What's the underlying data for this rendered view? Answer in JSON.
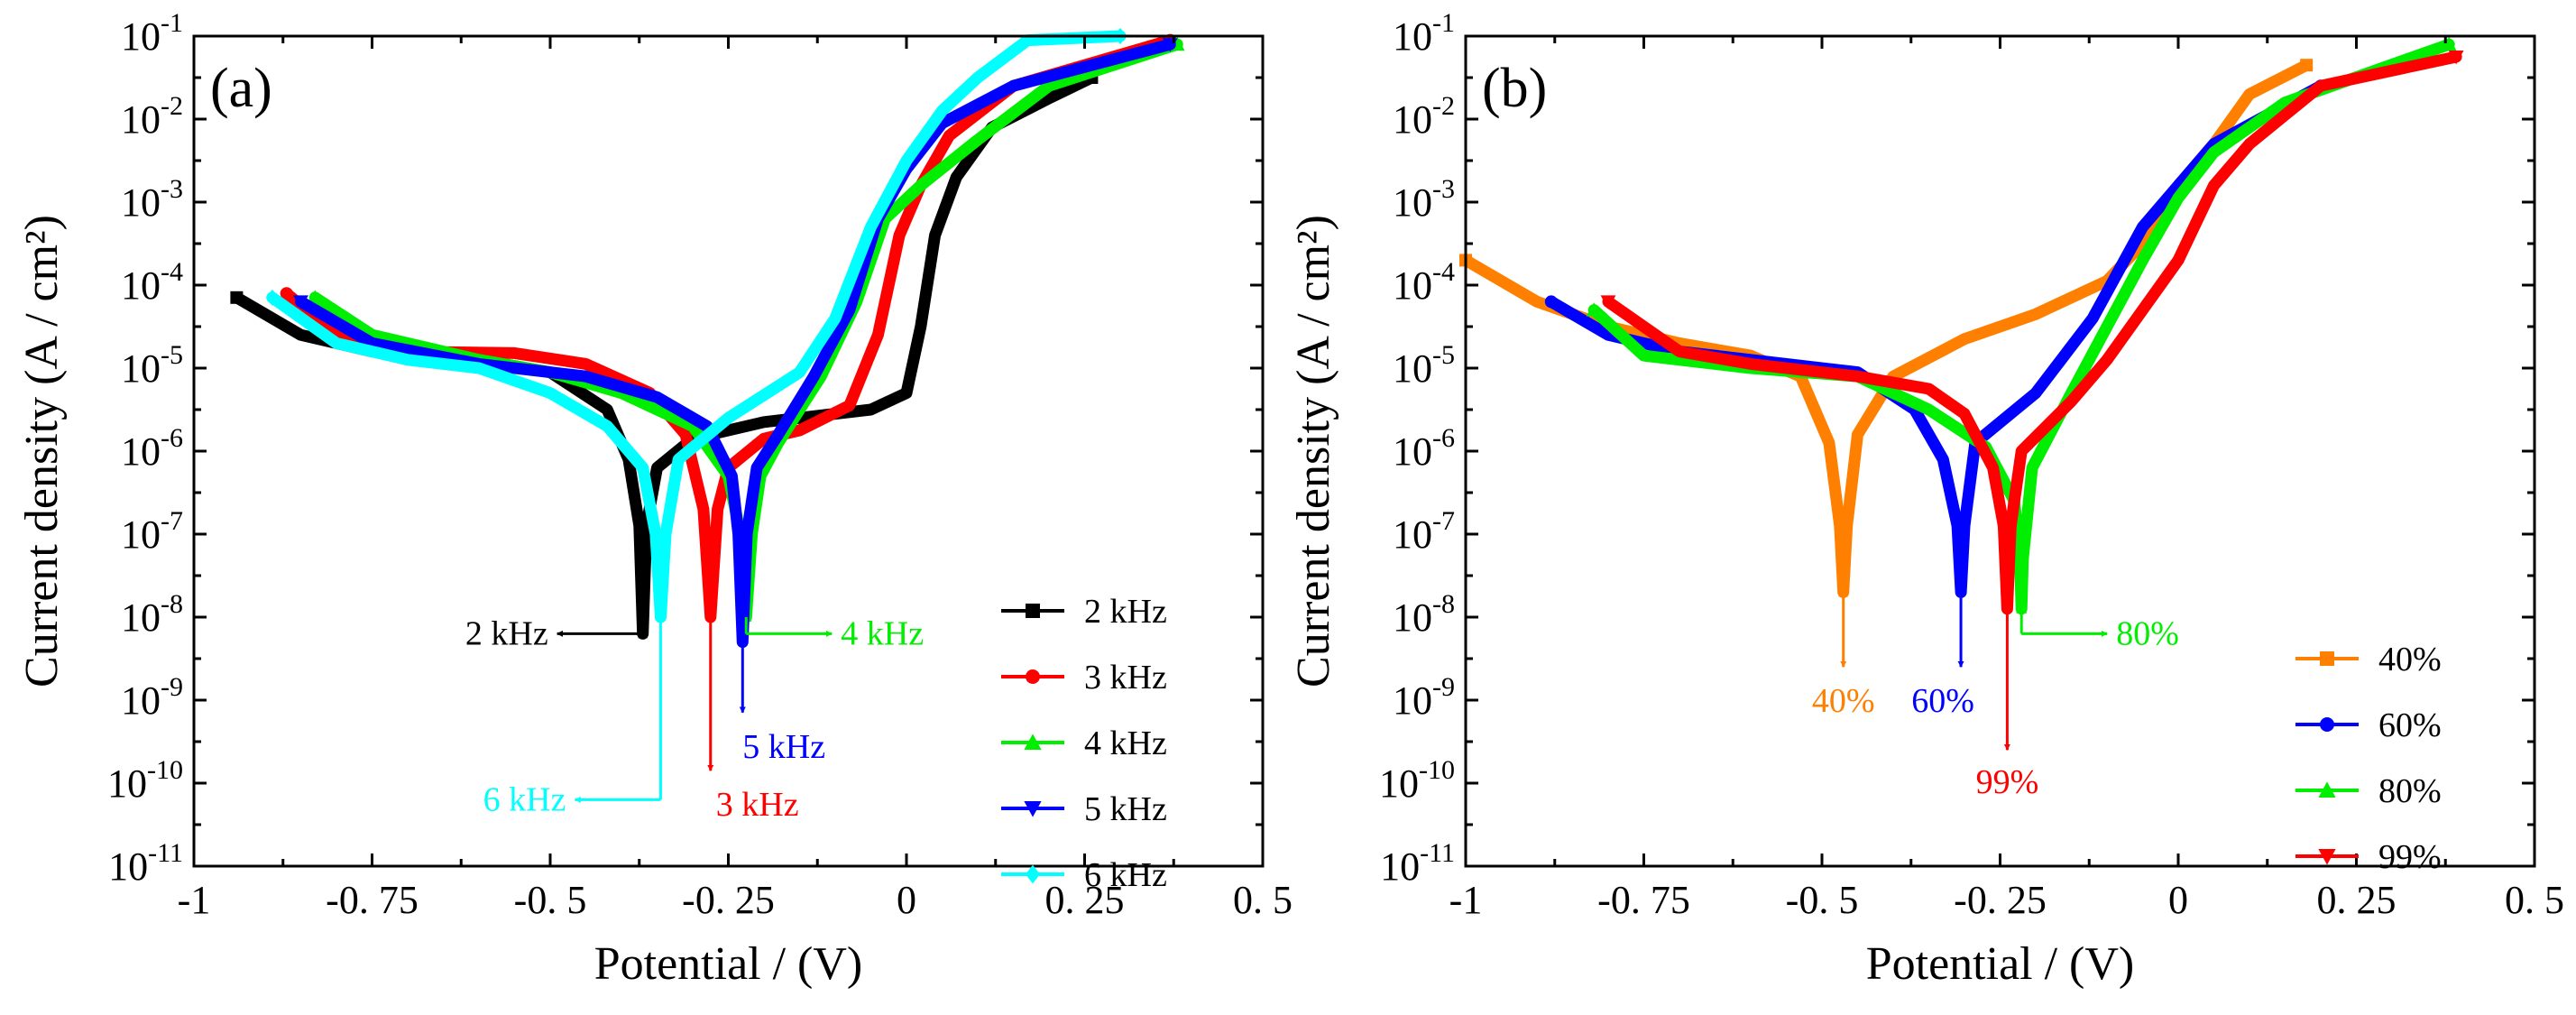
{
  "chart_data": [
    {
      "type": "line",
      "panel_label": "(a)",
      "xlabel": "Potential / (V)",
      "ylabel": "Current density (A / cm²)",
      "xlim": [
        -1,
        0.5
      ],
      "ylim_log10": [
        -11,
        -1
      ],
      "x_ticks": [
        -1,
        -0.75,
        -0.5,
        -0.25,
        0,
        0.25,
        0.5
      ],
      "x_tick_labels": [
        "-1",
        "-0. 75",
        "-0. 5",
        "-0. 25",
        "0",
        "0. 25",
        "0. 5"
      ],
      "y_tick_exponents": [
        -11,
        -10,
        -9,
        -8,
        -7,
        -6,
        -5,
        -4,
        -3,
        -2,
        -1
      ],
      "legend_position": "lower-right",
      "series": [
        {
          "name": "2 kHz",
          "color": "#000000",
          "marker": "square",
          "ecorr": -0.37,
          "xstart": -0.94,
          "xend": 0.26,
          "points": [
            [
              -0.94,
              -4.15
            ],
            [
              -0.85,
              -4.6
            ],
            [
              -0.75,
              -4.8
            ],
            [
              -0.6,
              -4.9
            ],
            [
              -0.5,
              -5.05
            ],
            [
              -0.42,
              -5.5
            ],
            [
              -0.39,
              -6.1
            ],
            [
              -0.375,
              -6.9
            ],
            [
              -0.37,
              -8.2
            ],
            [
              -0.365,
              -6.9
            ],
            [
              -0.35,
              -6.2
            ],
            [
              -0.3,
              -5.85
            ],
            [
              -0.2,
              -5.65
            ],
            [
              -0.05,
              -5.5
            ],
            [
              0.0,
              -5.3
            ],
            [
              0.02,
              -4.5
            ],
            [
              0.04,
              -3.4
            ],
            [
              0.07,
              -2.7
            ],
            [
              0.12,
              -2.1
            ],
            [
              0.2,
              -1.75
            ],
            [
              0.26,
              -1.5
            ]
          ]
        },
        {
          "name": "3 kHz",
          "color": "#ff0000",
          "marker": "circle",
          "ecorr": -0.275,
          "xstart": -0.87,
          "xend": 0.37,
          "points": [
            [
              -0.87,
              -4.1
            ],
            [
              -0.8,
              -4.6
            ],
            [
              -0.7,
              -4.8
            ],
            [
              -0.55,
              -4.82
            ],
            [
              -0.45,
              -4.95
            ],
            [
              -0.36,
              -5.3
            ],
            [
              -0.31,
              -5.8
            ],
            [
              -0.285,
              -6.7
            ],
            [
              -0.275,
              -8.0
            ],
            [
              -0.265,
              -6.7
            ],
            [
              -0.25,
              -6.2
            ],
            [
              -0.2,
              -5.85
            ],
            [
              -0.15,
              -5.75
            ],
            [
              -0.08,
              -5.45
            ],
            [
              -0.04,
              -4.6
            ],
            [
              -0.01,
              -3.4
            ],
            [
              0.02,
              -2.8
            ],
            [
              0.06,
              -2.2
            ],
            [
              0.15,
              -1.6
            ],
            [
              0.37,
              -1.05
            ]
          ]
        },
        {
          "name": "4 kHz",
          "color": "#00ee00",
          "marker": "triangle-up",
          "ecorr": -0.225,
          "xstart": -0.83,
          "xend": 0.38,
          "points": [
            [
              -0.83,
              -4.15
            ],
            [
              -0.75,
              -4.6
            ],
            [
              -0.6,
              -4.9
            ],
            [
              -0.5,
              -5.05
            ],
            [
              -0.4,
              -5.3
            ],
            [
              -0.3,
              -5.7
            ],
            [
              -0.25,
              -6.3
            ],
            [
              -0.233,
              -7.0
            ],
            [
              -0.225,
              -8.0
            ],
            [
              -0.217,
              -7.0
            ],
            [
              -0.205,
              -6.3
            ],
            [
              -0.18,
              -5.9
            ],
            [
              -0.12,
              -5.1
            ],
            [
              -0.07,
              -4.2
            ],
            [
              -0.03,
              -3.2
            ],
            [
              0.02,
              -2.8
            ],
            [
              0.1,
              -2.25
            ],
            [
              0.2,
              -1.6
            ],
            [
              0.38,
              -1.1
            ]
          ]
        },
        {
          "name": "5 kHz",
          "color": "#0000ff",
          "marker": "triangle-down",
          "ecorr": -0.23,
          "xstart": -0.85,
          "xend": 0.37,
          "points": [
            [
              -0.85,
              -4.2
            ],
            [
              -0.75,
              -4.7
            ],
            [
              -0.6,
              -4.95
            ],
            [
              -0.45,
              -5.1
            ],
            [
              -0.35,
              -5.35
            ],
            [
              -0.28,
              -5.7
            ],
            [
              -0.245,
              -6.3
            ],
            [
              -0.236,
              -7.0
            ],
            [
              -0.23,
              -8.3
            ],
            [
              -0.224,
              -7.0
            ],
            [
              -0.21,
              -6.2
            ],
            [
              -0.18,
              -5.8
            ],
            [
              -0.13,
              -5.1
            ],
            [
              -0.08,
              -4.3
            ],
            [
              -0.04,
              -3.2
            ],
            [
              0.0,
              -2.6
            ],
            [
              0.05,
              -2.05
            ],
            [
              0.15,
              -1.6
            ],
            [
              0.37,
              -1.1
            ]
          ]
        },
        {
          "name": "6 kHz",
          "color": "#00ffff",
          "marker": "diamond",
          "ecorr": -0.345,
          "xstart": -0.89,
          "xend": 0.3,
          "points": [
            [
              -0.89,
              -4.15
            ],
            [
              -0.8,
              -4.7
            ],
            [
              -0.7,
              -4.9
            ],
            [
              -0.6,
              -5.0
            ],
            [
              -0.5,
              -5.3
            ],
            [
              -0.42,
              -5.7
            ],
            [
              -0.37,
              -6.2
            ],
            [
              -0.352,
              -7.0
            ],
            [
              -0.345,
              -8.0
            ],
            [
              -0.338,
              -7.0
            ],
            [
              -0.32,
              -6.1
            ],
            [
              -0.25,
              -5.6
            ],
            [
              -0.15,
              -5.05
            ],
            [
              -0.1,
              -4.4
            ],
            [
              -0.05,
              -3.3
            ],
            [
              0.0,
              -2.5
            ],
            [
              0.05,
              -1.9
            ],
            [
              0.1,
              -1.5
            ],
            [
              0.17,
              -1.05
            ],
            [
              0.3,
              -1.0
            ]
          ]
        }
      ],
      "annotations": [
        {
          "text": "2 kHz",
          "color": "#000000",
          "arrow_x": -0.37,
          "arrow_to_log": -8.2,
          "direction": "left"
        },
        {
          "text": "3 kHz",
          "color": "#ff0000",
          "arrow_x": -0.275,
          "arrow_to_log": -9.85,
          "direction": "down"
        },
        {
          "text": "4 kHz",
          "color": "#00ee00",
          "arrow_x": -0.225,
          "arrow_to_log": -8.2,
          "direction": "right"
        },
        {
          "text": "5 kHz",
          "color": "#0000ff",
          "arrow_x": -0.23,
          "arrow_to_log": -9.15,
          "direction": "down"
        },
        {
          "text": "6 kHz",
          "color": "#00ffff",
          "arrow_x": -0.345,
          "arrow_to_log": -10.2,
          "direction": "left"
        }
      ]
    },
    {
      "type": "line",
      "panel_label": "(b)",
      "xlabel": "Potential / (V)",
      "ylabel": "Current density (A / cm²)",
      "xlim": [
        -1,
        0.5
      ],
      "ylim_log10": [
        -11,
        -1
      ],
      "x_ticks": [
        -1,
        -0.75,
        -0.5,
        -0.25,
        0,
        0.25,
        0.5
      ],
      "x_tick_labels": [
        "-1",
        "-0. 75",
        "-0. 5",
        "-0. 25",
        "0",
        "0. 25",
        "0. 5"
      ],
      "y_tick_exponents": [
        -11,
        -10,
        -9,
        -8,
        -7,
        -6,
        -5,
        -4,
        -3,
        -2,
        -1
      ],
      "legend_position": "lower-right",
      "series": [
        {
          "name": "40%",
          "color": "#ff8000",
          "marker": "square",
          "ecorr": -0.47,
          "xstart": -1.0,
          "xend": 0.18,
          "points": [
            [
              -1.0,
              -3.7
            ],
            [
              -0.9,
              -4.2
            ],
            [
              -0.8,
              -4.5
            ],
            [
              -0.7,
              -4.7
            ],
            [
              -0.6,
              -4.85
            ],
            [
              -0.53,
              -5.1
            ],
            [
              -0.49,
              -5.9
            ],
            [
              -0.475,
              -6.9
            ],
            [
              -0.47,
              -7.7
            ],
            [
              -0.465,
              -6.9
            ],
            [
              -0.45,
              -5.8
            ],
            [
              -0.4,
              -5.1
            ],
            [
              -0.3,
              -4.65
            ],
            [
              -0.2,
              -4.35
            ],
            [
              -0.1,
              -3.95
            ],
            [
              -0.05,
              -3.5
            ],
            [
              0.0,
              -2.8
            ],
            [
              0.05,
              -2.3
            ],
            [
              0.1,
              -1.7
            ],
            [
              0.18,
              -1.35
            ]
          ]
        },
        {
          "name": "60%",
          "color": "#0000ff",
          "marker": "circle",
          "ecorr": -0.305,
          "xstart": -0.88,
          "xend": 0.2,
          "points": [
            [
              -0.88,
              -4.2
            ],
            [
              -0.8,
              -4.6
            ],
            [
              -0.7,
              -4.8
            ],
            [
              -0.6,
              -4.9
            ],
            [
              -0.45,
              -5.05
            ],
            [
              -0.37,
              -5.5
            ],
            [
              -0.33,
              -6.1
            ],
            [
              -0.31,
              -6.9
            ],
            [
              -0.305,
              -7.7
            ],
            [
              -0.3,
              -6.9
            ],
            [
              -0.285,
              -5.9
            ],
            [
              -0.2,
              -5.3
            ],
            [
              -0.12,
              -4.4
            ],
            [
              -0.05,
              -3.3
            ],
            [
              0.0,
              -2.8
            ],
            [
              0.05,
              -2.3
            ],
            [
              0.2,
              -1.6
            ]
          ]
        },
        {
          "name": "80%",
          "color": "#00ee00",
          "marker": "triangle-up",
          "ecorr": -0.22,
          "xstart": -0.82,
          "xend": 0.38,
          "points": [
            [
              -0.82,
              -4.3
            ],
            [
              -0.75,
              -4.85
            ],
            [
              -0.6,
              -5.0
            ],
            [
              -0.45,
              -5.1
            ],
            [
              -0.35,
              -5.5
            ],
            [
              -0.27,
              -5.95
            ],
            [
              -0.23,
              -6.6
            ],
            [
              -0.222,
              -7.3
            ],
            [
              -0.22,
              -7.9
            ],
            [
              -0.218,
              -7.3
            ],
            [
              -0.205,
              -6.2
            ],
            [
              -0.15,
              -5.3
            ],
            [
              -0.1,
              -4.5
            ],
            [
              -0.05,
              -3.7
            ],
            [
              0.0,
              -2.95
            ],
            [
              0.05,
              -2.4
            ],
            [
              0.15,
              -1.8
            ],
            [
              0.38,
              -1.1
            ]
          ]
        },
        {
          "name": "99%",
          "color": "#ff0000",
          "marker": "triangle-down",
          "ecorr": -0.24,
          "xstart": -0.8,
          "xend": 0.39,
          "points": [
            [
              -0.8,
              -4.2
            ],
            [
              -0.7,
              -4.8
            ],
            [
              -0.6,
              -4.95
            ],
            [
              -0.45,
              -5.1
            ],
            [
              -0.35,
              -5.25
            ],
            [
              -0.3,
              -5.55
            ],
            [
              -0.26,
              -6.2
            ],
            [
              -0.245,
              -6.9
            ],
            [
              -0.24,
              -7.9
            ],
            [
              -0.235,
              -6.9
            ],
            [
              -0.22,
              -6.0
            ],
            [
              -0.15,
              -5.4
            ],
            [
              -0.1,
              -4.9
            ],
            [
              -0.05,
              -4.3
            ],
            [
              0.0,
              -3.7
            ],
            [
              0.05,
              -2.8
            ],
            [
              0.1,
              -2.3
            ],
            [
              0.2,
              -1.6
            ],
            [
              0.39,
              -1.25
            ]
          ]
        }
      ],
      "annotations": [
        {
          "text": "40%",
          "color": "#ff8000",
          "arrow_x": -0.47,
          "arrow_to_log": -8.6,
          "direction": "down"
        },
        {
          "text": "60%",
          "color": "#0000ff",
          "arrow_x": -0.305,
          "arrow_to_log": -8.6,
          "direction": "down"
        },
        {
          "text": "80%",
          "color": "#00ee00",
          "arrow_x": -0.22,
          "arrow_to_log": -8.2,
          "direction": "right"
        },
        {
          "text": "99%",
          "color": "#ff0000",
          "arrow_x": -0.24,
          "arrow_to_log": -9.6,
          "direction": "down"
        }
      ]
    }
  ]
}
